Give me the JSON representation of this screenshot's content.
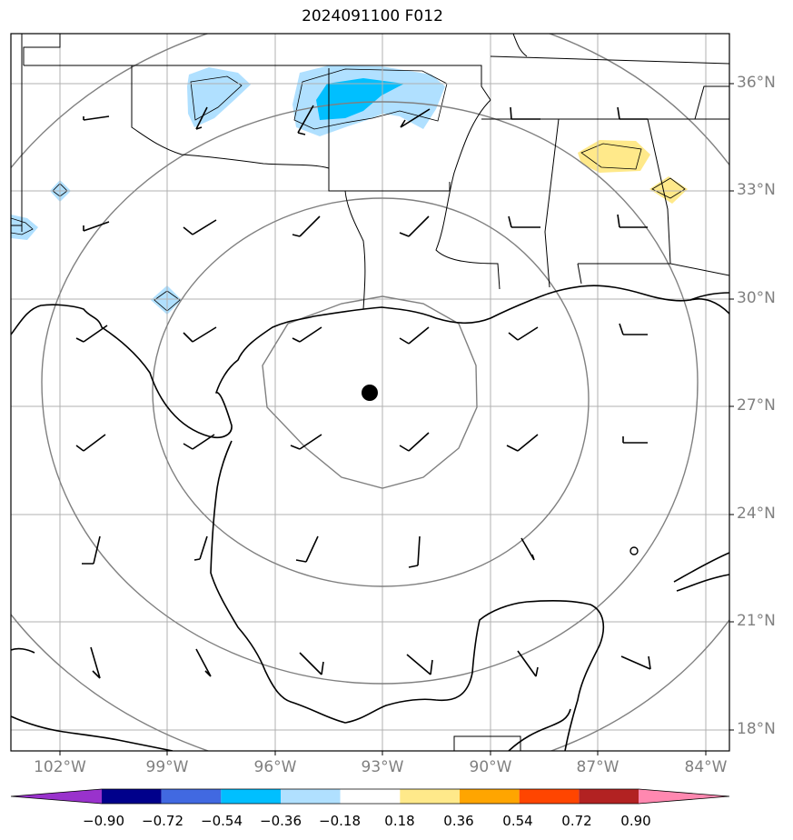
{
  "title": "2024091100 F012",
  "lat_labels": [
    "36°N",
    "33°N",
    "30°N",
    "27°N",
    "24°N",
    "21°N",
    "18°N"
  ],
  "lon_labels": [
    "102°W",
    "99°W",
    "96°W",
    "93°W",
    "90°W",
    "87°W",
    "84°W"
  ],
  "colorbar": {
    "ticks": [
      "−0.90",
      "−0.72",
      "−0.54",
      "−0.36",
      "−0.18",
      "0.18",
      "0.36",
      "0.54",
      "0.72",
      "0.90"
    ],
    "colors": [
      "#9932cc",
      "#00008b",
      "#4169e1",
      "#00bfff",
      "#b0e0ff",
      "#ffffff",
      "#ffe98a",
      "#ffa500",
      "#ff4500",
      "#b22222",
      "#ff88b0"
    ]
  },
  "contour_colors": {
    "light_blue": "#b0e0ff",
    "blue": "#00bfff",
    "yellow": "#ffe98a"
  },
  "center_marker": {
    "lat": 27.4,
    "lon": -93.3
  }
}
